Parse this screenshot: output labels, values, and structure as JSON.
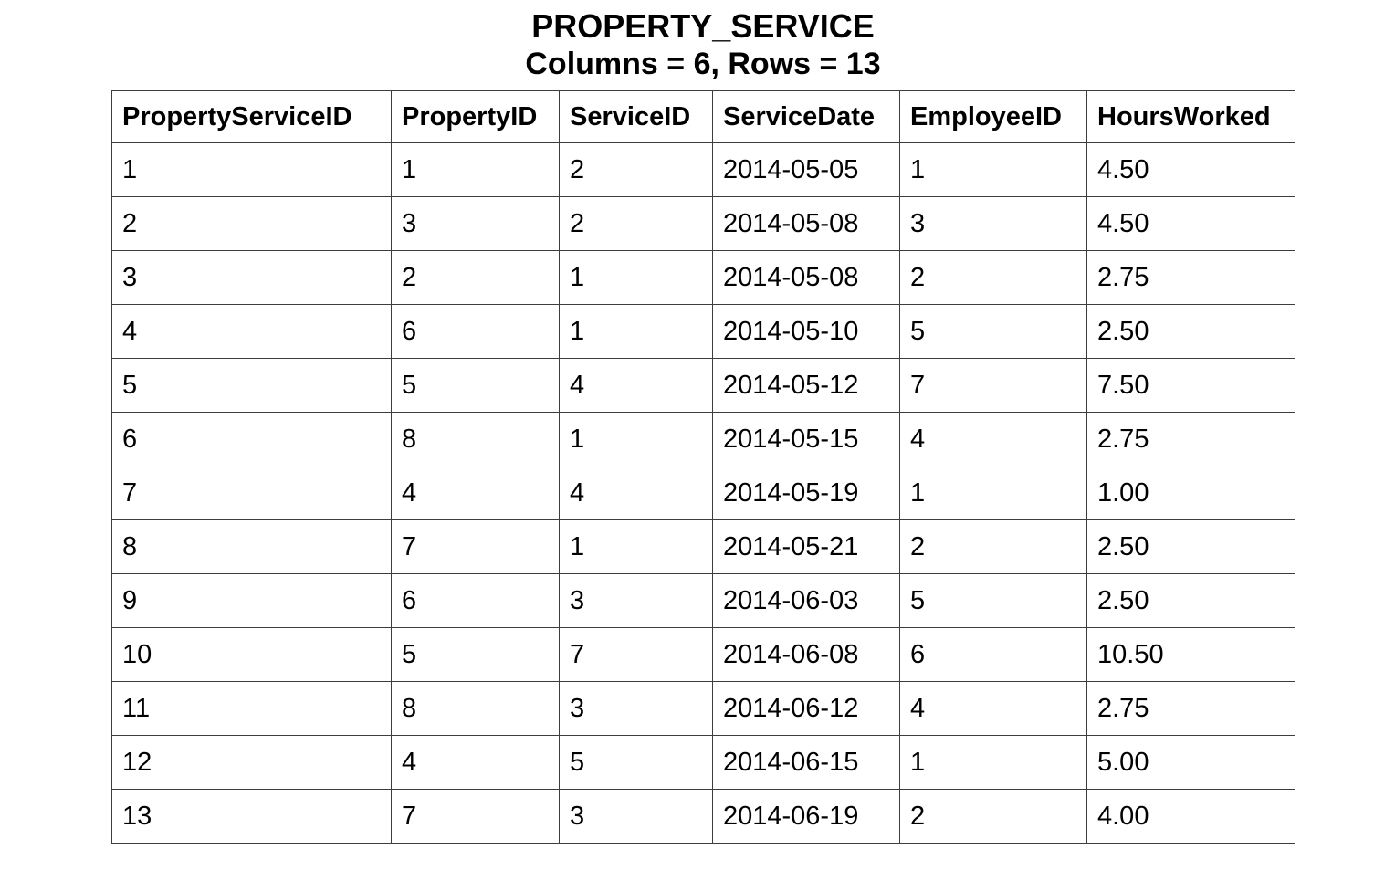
{
  "page": {
    "title": "PROPERTY_SERVICE",
    "subtitle": "Columns = 6, Rows = 13"
  },
  "chart_data": {
    "type": "table",
    "title": "PROPERTY_SERVICE",
    "subtitle": "Columns = 6, Rows = 13",
    "column_count": 6,
    "row_count": 13,
    "columns": [
      "PropertyServiceID",
      "PropertyID",
      "ServiceID",
      "ServiceDate",
      "EmployeeID",
      "HoursWorked"
    ],
    "rows": [
      [
        "1",
        "1",
        "2",
        "2014-05-05",
        "1",
        "4.50"
      ],
      [
        "2",
        "3",
        "2",
        "2014-05-08",
        "3",
        "4.50"
      ],
      [
        "3",
        "2",
        "1",
        "2014-05-08",
        "2",
        "2.75"
      ],
      [
        "4",
        "6",
        "1",
        "2014-05-10",
        "5",
        "2.50"
      ],
      [
        "5",
        "5",
        "4",
        "2014-05-12",
        "7",
        "7.50"
      ],
      [
        "6",
        "8",
        "1",
        "2014-05-15",
        "4",
        "2.75"
      ],
      [
        "7",
        "4",
        "4",
        "2014-05-19",
        "1",
        "1.00"
      ],
      [
        "8",
        "7",
        "1",
        "2014-05-21",
        "2",
        "2.50"
      ],
      [
        "9",
        "6",
        "3",
        "2014-06-03",
        "5",
        "2.50"
      ],
      [
        "10",
        "5",
        "7",
        "2014-06-08",
        "6",
        "10.50"
      ],
      [
        "11",
        "8",
        "3",
        "2014-06-12",
        "4",
        "2.75"
      ],
      [
        "12",
        "4",
        "5",
        "2014-06-15",
        "1",
        "5.00"
      ],
      [
        "13",
        "7",
        "3",
        "2014-06-19",
        "2",
        "4.00"
      ]
    ]
  }
}
